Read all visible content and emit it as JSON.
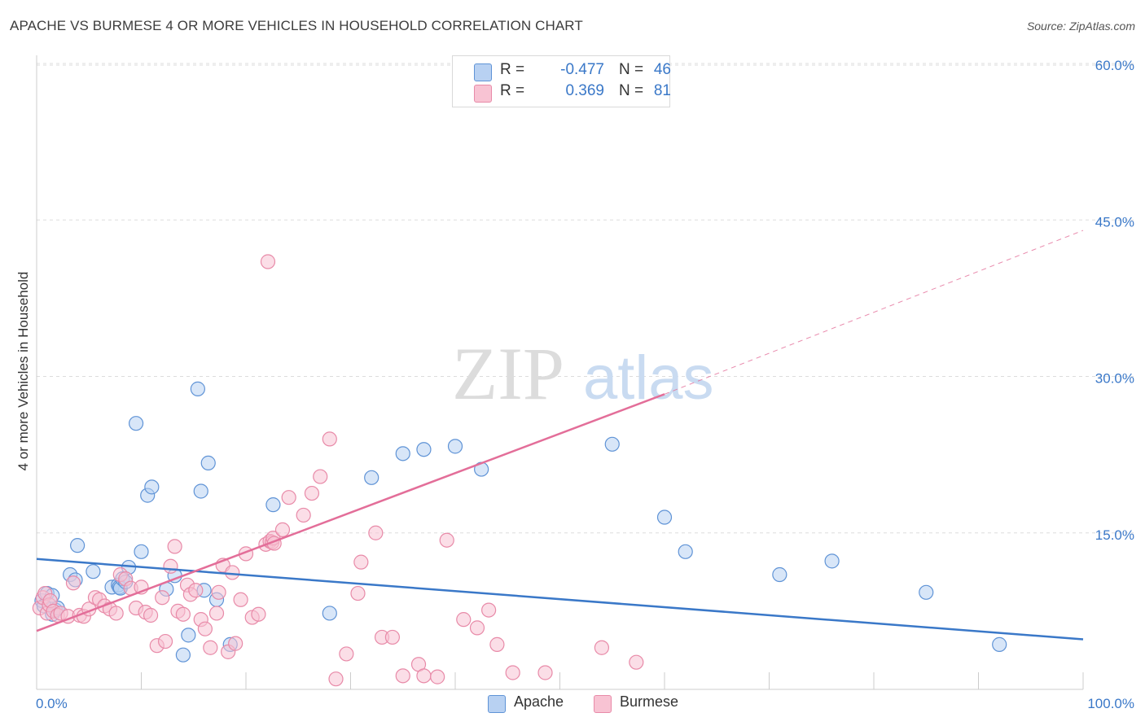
{
  "title": "APACHE VS BURMESE 4 OR MORE VEHICLES IN HOUSEHOLD CORRELATION CHART",
  "source": "Source: ZipAtlas.com",
  "watermark": {
    "zip": "ZIP",
    "atlas": "atlas"
  },
  "colors": {
    "apache_fill": "#b8d1f2",
    "apache_stroke": "#5f93d6",
    "apache_line": "#3a78c8",
    "burmese_fill": "#f8c3d3",
    "burmese_stroke": "#e88aa8",
    "burmese_line": "#e36e99",
    "grid": "#dddddd",
    "tick_label": "#3a78c8",
    "axis_text": "#333333"
  },
  "stats": [
    {
      "swatch": "apache",
      "r_label": "R =",
      "r_value": "-0.477",
      "n_label": "N =",
      "n_value": "46"
    },
    {
      "swatch": "burmese",
      "r_label": "R =",
      "r_value": "0.369",
      "n_label": "N =",
      "n_value": "81"
    }
  ],
  "legend": [
    {
      "swatch": "apache",
      "label": "Apache"
    },
    {
      "swatch": "burmese",
      "label": "Burmese"
    }
  ],
  "chart_data": {
    "type": "scatter",
    "title": "APACHE VS BURMESE 4 OR MORE VEHICLES IN HOUSEHOLD CORRELATION CHART",
    "xlabel": "",
    "ylabel": "4 or more Vehicles in Household",
    "xlim": [
      0,
      100
    ],
    "ylim": [
      0,
      60
    ],
    "x_tick_labels": [
      "0.0%",
      "100.0%"
    ],
    "y_ticks": [
      15,
      30,
      45,
      60
    ],
    "y_tick_labels": [
      "15.0%",
      "30.0%",
      "45.0%",
      "60.0%"
    ],
    "grid": true,
    "series": [
      {
        "name": "Apache",
        "color": "#5f93d6",
        "points": [
          [
            0.5,
            8.5
          ],
          [
            0.7,
            8.0
          ],
          [
            1.0,
            9.2
          ],
          [
            1.5,
            9.0
          ],
          [
            1.5,
            7.2
          ],
          [
            1.8,
            7.6
          ],
          [
            2.0,
            7.8
          ],
          [
            3.2,
            11.0
          ],
          [
            3.7,
            10.5
          ],
          [
            3.9,
            13.8
          ],
          [
            5.4,
            11.3
          ],
          [
            7.2,
            9.8
          ],
          [
            7.8,
            10.0
          ],
          [
            7.9,
            9.8
          ],
          [
            8.0,
            9.7
          ],
          [
            8.2,
            10.6
          ],
          [
            8.5,
            10.3
          ],
          [
            8.8,
            11.7
          ],
          [
            9.5,
            25.5
          ],
          [
            10.0,
            13.2
          ],
          [
            10.6,
            18.6
          ],
          [
            11.0,
            19.4
          ],
          [
            12.4,
            9.6
          ],
          [
            13.2,
            10.9
          ],
          [
            14.0,
            3.3
          ],
          [
            14.5,
            5.2
          ],
          [
            15.4,
            28.8
          ],
          [
            15.7,
            19.0
          ],
          [
            16.0,
            9.5
          ],
          [
            16.4,
            21.7
          ],
          [
            17.2,
            8.6
          ],
          [
            18.5,
            4.3
          ],
          [
            22.6,
            17.7
          ],
          [
            28.0,
            7.3
          ],
          [
            32.0,
            20.3
          ],
          [
            35.0,
            22.6
          ],
          [
            37.0,
            23.0
          ],
          [
            40.0,
            23.3
          ],
          [
            42.5,
            21.1
          ],
          [
            55.0,
            23.5
          ],
          [
            60.0,
            16.5
          ],
          [
            62.0,
            13.2
          ],
          [
            71.0,
            11.0
          ],
          [
            76.0,
            12.3
          ],
          [
            85.0,
            9.3
          ],
          [
            92.0,
            4.3
          ]
        ]
      },
      {
        "name": "Burmese",
        "color": "#e88aa8",
        "points": [
          [
            0.3,
            7.8
          ],
          [
            0.6,
            8.8
          ],
          [
            0.8,
            9.2
          ],
          [
            1.0,
            7.3
          ],
          [
            1.2,
            8.1
          ],
          [
            1.3,
            8.5
          ],
          [
            1.6,
            7.5
          ],
          [
            2.0,
            7.1
          ],
          [
            2.3,
            7.3
          ],
          [
            3.0,
            7.0
          ],
          [
            3.5,
            10.2
          ],
          [
            4.1,
            7.1
          ],
          [
            4.5,
            7.0
          ],
          [
            5.0,
            7.7
          ],
          [
            5.6,
            8.8
          ],
          [
            6.0,
            8.6
          ],
          [
            6.5,
            8.0
          ],
          [
            7.0,
            7.7
          ],
          [
            7.6,
            7.3
          ],
          [
            8.0,
            11.0
          ],
          [
            8.5,
            10.6
          ],
          [
            9.0,
            9.7
          ],
          [
            9.5,
            7.8
          ],
          [
            10.0,
            9.8
          ],
          [
            10.4,
            7.4
          ],
          [
            10.9,
            7.1
          ],
          [
            11.5,
            4.2
          ],
          [
            12.0,
            8.8
          ],
          [
            12.3,
            4.6
          ],
          [
            12.8,
            11.8
          ],
          [
            13.2,
            13.7
          ],
          [
            13.5,
            7.5
          ],
          [
            14.0,
            7.2
          ],
          [
            14.4,
            10.0
          ],
          [
            14.7,
            9.1
          ],
          [
            15.2,
            9.5
          ],
          [
            15.7,
            6.7
          ],
          [
            16.1,
            5.8
          ],
          [
            16.6,
            4.0
          ],
          [
            17.2,
            7.3
          ],
          [
            17.4,
            9.3
          ],
          [
            17.8,
            11.9
          ],
          [
            18.3,
            3.6
          ],
          [
            18.7,
            11.2
          ],
          [
            19.0,
            4.4
          ],
          [
            19.5,
            8.6
          ],
          [
            20.0,
            13.0
          ],
          [
            20.6,
            6.9
          ],
          [
            21.2,
            7.2
          ],
          [
            21.9,
            13.9
          ],
          [
            22.1,
            41.0
          ],
          [
            22.3,
            14.2
          ],
          [
            22.5,
            14.1
          ],
          [
            22.6,
            14.5
          ],
          [
            22.7,
            14.0
          ],
          [
            23.5,
            15.3
          ],
          [
            24.1,
            18.4
          ],
          [
            25.5,
            16.7
          ],
          [
            26.3,
            18.8
          ],
          [
            27.1,
            20.4
          ],
          [
            28.0,
            24.0
          ],
          [
            28.6,
            1.0
          ],
          [
            29.6,
            3.4
          ],
          [
            30.7,
            9.2
          ],
          [
            31.0,
            12.2
          ],
          [
            32.4,
            15.0
          ],
          [
            33.0,
            5.0
          ],
          [
            34.0,
            5.0
          ],
          [
            35.0,
            1.3
          ],
          [
            36.5,
            2.4
          ],
          [
            37.0,
            1.3
          ],
          [
            38.3,
            1.2
          ],
          [
            39.2,
            14.3
          ],
          [
            40.8,
            6.7
          ],
          [
            42.1,
            5.9
          ],
          [
            43.2,
            7.6
          ],
          [
            44.0,
            4.3
          ],
          [
            45.5,
            1.6
          ],
          [
            48.6,
            1.6
          ],
          [
            57.3,
            2.6
          ],
          [
            54.0,
            4.0
          ]
        ]
      }
    ],
    "trend_lines": [
      {
        "series": "Apache",
        "x": [
          0,
          100
        ],
        "y": [
          12.5,
          4.8
        ],
        "style": "solid"
      },
      {
        "series": "Burmese",
        "x": [
          0,
          60
        ],
        "y": [
          5.6,
          28.3
        ],
        "style": "solid"
      },
      {
        "series": "Burmese",
        "x": [
          60,
          100
        ],
        "y": [
          28.3,
          44.0
        ],
        "style": "dashed"
      }
    ]
  }
}
